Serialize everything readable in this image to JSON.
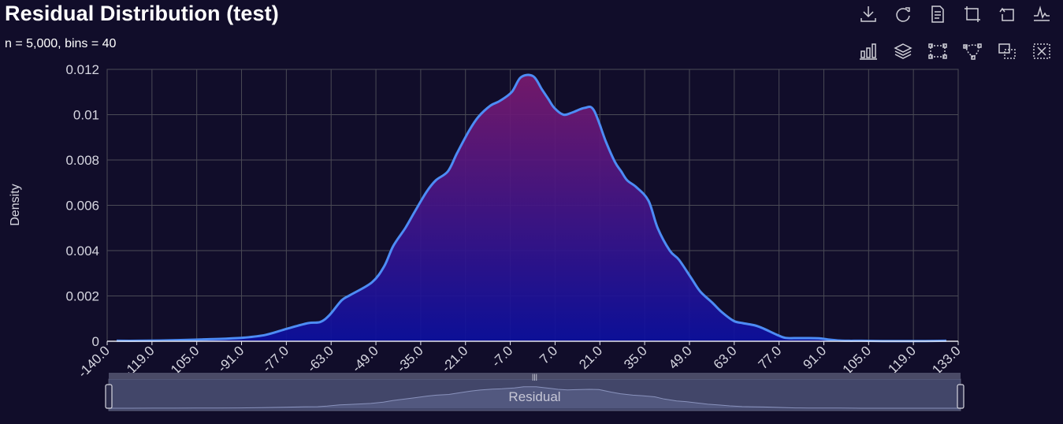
{
  "header": {
    "title": "Residual Distribution (test)",
    "subtitle": "n = 5,000, bins = 40"
  },
  "toolbox": {
    "icons": [
      "download-icon",
      "refresh-icon",
      "data-view-icon",
      "zoom-icon",
      "zoom-reset-icon",
      "line-chart-icon",
      "bar-chart-icon",
      "stack-icon",
      "rect-select-icon",
      "lasso-select-icon",
      "keep-select-icon",
      "clear-select-icon"
    ],
    "icon_color": "#d0d0d8"
  },
  "colors": {
    "background": "#110d2a",
    "line": "#4d8cf5",
    "area_top": "#7a1a6e",
    "area_bottom": "#0c10a0",
    "grid": "#4a4a55",
    "axis_text": "#d6d6e0"
  },
  "chart_data": {
    "type": "area",
    "title": "Residual Distribution (test)",
    "subtitle": "n = 5,000, bins = 40",
    "xlabel": "",
    "ylabel": "Density",
    "xlim": [
      -140.0,
      133.0
    ],
    "ylim": [
      0,
      0.012
    ],
    "y_ticks": [
      "0",
      "0.002",
      "0.004",
      "0.006",
      "0.008",
      "0.01",
      "0.012"
    ],
    "y_tick_values": [
      0,
      0.002,
      0.004,
      0.006,
      0.008,
      0.01,
      0.012
    ],
    "x_tick_labels": [
      "-140.0",
      "-119.0",
      "-105.0",
      "-91.0",
      "-77.0",
      "-63.0",
      "-49.0",
      "-35.0",
      "-21.0",
      "-7.0",
      "7.0",
      "21.0",
      "35.0",
      "49.0",
      "63.0",
      "77.0",
      "91.0",
      "105.0",
      "119.0",
      "133.0"
    ],
    "grid": true,
    "series": [
      {
        "x": [
          -140,
          -133,
          -126,
          -119,
          -112,
          -105,
          -98,
          -91,
          -84,
          -77,
          -73,
          -70,
          -66,
          -63,
          -56,
          -52,
          -49,
          -45,
          -42,
          -38,
          -35,
          -31,
          -28,
          -24,
          -21,
          -17,
          -14,
          -10,
          -7,
          -3,
          0,
          2,
          4,
          7,
          10,
          14,
          17,
          21,
          24,
          26,
          28,
          31,
          35,
          38,
          42,
          45,
          49,
          52,
          56,
          59,
          63,
          66,
          70,
          73,
          77,
          80,
          84,
          87,
          91,
          94,
          98,
          101,
          105,
          112,
          119,
          126,
          133
        ],
        "y": [
          2e-05,
          2e-05,
          3e-05,
          5e-05,
          8e-05,
          0.00011,
          0.00016,
          0.00028,
          0.00055,
          0.0008,
          0.00085,
          0.00115,
          0.0018,
          0.00205,
          0.0026,
          0.0033,
          0.0042,
          0.005,
          0.0057,
          0.0066,
          0.0071,
          0.0075,
          0.0083,
          0.0093,
          0.0099,
          0.0104,
          0.0106,
          0.011,
          0.01165,
          0.0117,
          0.0111,
          0.0107,
          0.0103,
          0.01,
          0.0101,
          0.0103,
          0.0102,
          0.0088,
          0.0079,
          0.0075,
          0.0071,
          0.0068,
          0.0062,
          0.005,
          0.004,
          0.0036,
          0.0028,
          0.0022,
          0.0017,
          0.0013,
          0.0009,
          0.0008,
          0.0007,
          0.00055,
          0.0003,
          0.00015,
          0.00014,
          0.00014,
          0.00013,
          8e-05,
          3e-05,
          2e-05,
          2e-05,
          1e-05,
          1e-05,
          1e-05,
          2e-05
        ]
      }
    ],
    "zoom_slider": {
      "label": "Residual",
      "start_percent": 0,
      "end_percent": 100,
      "handle_label": "|||"
    }
  }
}
